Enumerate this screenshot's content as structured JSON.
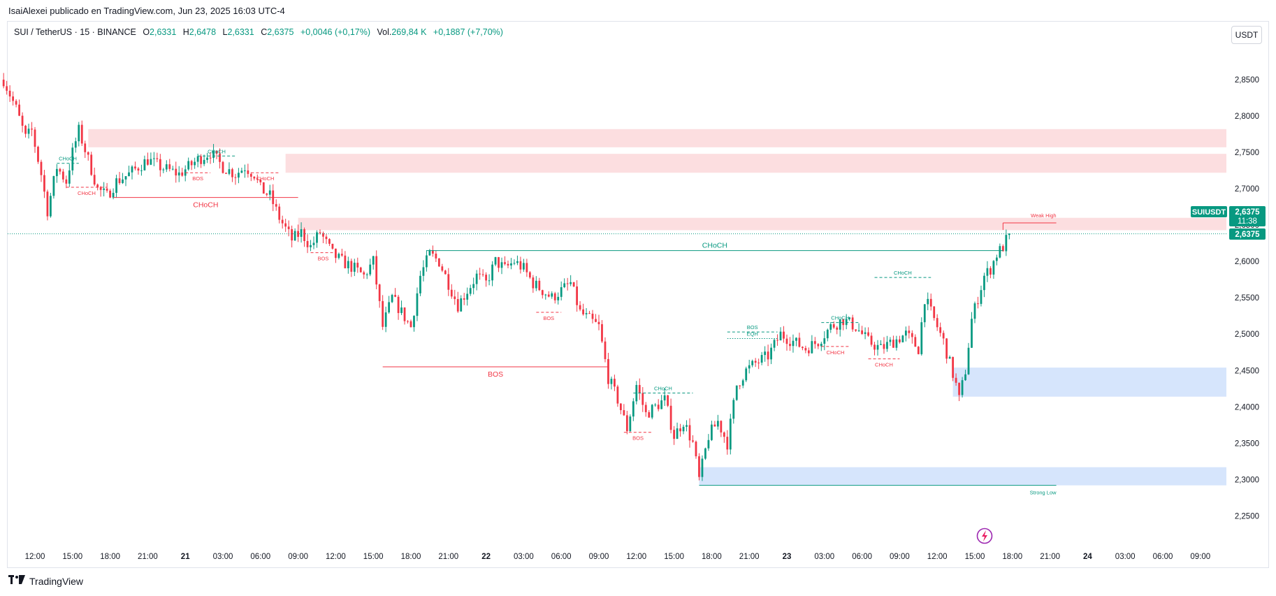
{
  "header": {
    "publisher_line": "IsaiAlexei publicado en TradingView.com, Jun 23, 2025 16:03 UTC-4"
  },
  "legend": {
    "symbol": "SUI / TetherUS · 15 · BINANCE",
    "o_label": "O",
    "o_value": "2,6331",
    "h_label": "H",
    "h_value": "2,6478",
    "l_label": "L",
    "l_value": "2,6331",
    "c_label": "C",
    "c_value": "2,6375",
    "change": "+0,0046 (+0,17%)",
    "vol_label": "Vol.",
    "vol_value": "269,84 K",
    "vol_change": "+0,1887 (+7,70%)"
  },
  "currency_button": "USDT",
  "price_tags": {
    "symbol_tag": "SUIUSDT",
    "last_price": "2,6375",
    "countdown": "11:38",
    "line_price": "2,6375"
  },
  "footer": {
    "brand": "TradingView"
  },
  "colors": {
    "up": "#089981",
    "down": "#f23645",
    "supply_zone": "#fbd3d6",
    "demand_zone": "#cfe0fb",
    "price_line": "#089981"
  },
  "chart_data": {
    "type": "candlestick",
    "title": "",
    "symbol": "SUI / TetherUS",
    "interval": "15",
    "exchange": "BINANCE",
    "ylim": [
      2.21,
      2.9
    ],
    "y_ticks": [
      "2,8500",
      "2,8000",
      "2,7500",
      "2,7000",
      "2,6500",
      "2,6000",
      "2,5500",
      "2,5000",
      "2,4500",
      "2,4000",
      "2,3500",
      "2,3000",
      "2,2500"
    ],
    "y_tick_values": [
      2.85,
      2.8,
      2.75,
      2.7,
      2.65,
      2.6,
      2.55,
      2.5,
      2.45,
      2.4,
      2.35,
      2.3,
      2.25
    ],
    "x_ticks": [
      "12:00",
      "15:00",
      "18:00",
      "21:00",
      "21",
      "03:00",
      "06:00",
      "09:00",
      "12:00",
      "15:00",
      "18:00",
      "21:00",
      "22",
      "03:00",
      "06:00",
      "09:00",
      "12:00",
      "15:00",
      "18:00",
      "21:00",
      "23",
      "03:00",
      "06:00",
      "09:00",
      "12:00",
      "15:00",
      "18:00",
      "21:00",
      "24",
      "03:00",
      "06:00",
      "09:00"
    ],
    "x_tick_bold": [
      "21",
      "22",
      "23",
      "24"
    ],
    "bars_per_hour": 4,
    "first_bar_hours_before_first_tick": 2.5,
    "close_path": [
      [
        0,
        2.85
      ],
      [
        4,
        2.81
      ],
      [
        7,
        2.77
      ],
      [
        9,
        2.78
      ],
      [
        12,
        2.72
      ],
      [
        14,
        2.67
      ],
      [
        17,
        2.73
      ],
      [
        20,
        2.71
      ],
      [
        22,
        2.75
      ],
      [
        24,
        2.78
      ],
      [
        27,
        2.74
      ],
      [
        30,
        2.7
      ],
      [
        33,
        2.69
      ],
      [
        36,
        2.71
      ],
      [
        40,
        2.72
      ],
      [
        46,
        2.74
      ],
      [
        50,
        2.73
      ],
      [
        56,
        2.72
      ],
      [
        62,
        2.74
      ],
      [
        66,
        2.75
      ],
      [
        70,
        2.73
      ],
      [
        74,
        2.72
      ],
      [
        77,
        2.73
      ],
      [
        80,
        2.72
      ],
      [
        82,
        2.7
      ],
      [
        85,
        2.69
      ],
      [
        88,
        2.66
      ],
      [
        92,
        2.63
      ],
      [
        95,
        2.64
      ],
      [
        98,
        2.62
      ],
      [
        101,
        2.64
      ],
      [
        105,
        2.61
      ],
      [
        108,
        2.6
      ],
      [
        112,
        2.59
      ],
      [
        115,
        2.58
      ],
      [
        118,
        2.6
      ],
      [
        121,
        2.51
      ],
      [
        124,
        2.55
      ],
      [
        127,
        2.53
      ],
      [
        130,
        2.51
      ],
      [
        133,
        2.58
      ],
      [
        136,
        2.61
      ],
      [
        139,
        2.6
      ],
      [
        142,
        2.57
      ],
      [
        145,
        2.54
      ],
      [
        148,
        2.56
      ],
      [
        151,
        2.58
      ],
      [
        154,
        2.57
      ],
      [
        157,
        2.6
      ],
      [
        160,
        2.59
      ],
      [
        163,
        2.6
      ],
      [
        166,
        2.59
      ],
      [
        169,
        2.57
      ],
      [
        172,
        2.56
      ],
      [
        175,
        2.55
      ],
      [
        178,
        2.56
      ],
      [
        181,
        2.57
      ],
      [
        184,
        2.53
      ],
      [
        187,
        2.52
      ],
      [
        190,
        2.51
      ],
      [
        193,
        2.44
      ],
      [
        196,
        2.41
      ],
      [
        199,
        2.37
      ],
      [
        202,
        2.43
      ],
      [
        205,
        2.39
      ],
      [
        208,
        2.4
      ],
      [
        211,
        2.41
      ],
      [
        214,
        2.36
      ],
      [
        217,
        2.38
      ],
      [
        220,
        2.35
      ],
      [
        222,
        2.3
      ],
      [
        225,
        2.36
      ],
      [
        228,
        2.38
      ],
      [
        231,
        2.35
      ],
      [
        234,
        2.43
      ],
      [
        237,
        2.45
      ],
      [
        240,
        2.46
      ],
      [
        244,
        2.47
      ],
      [
        248,
        2.5
      ],
      [
        252,
        2.49
      ],
      [
        256,
        2.48
      ],
      [
        260,
        2.49
      ],
      [
        264,
        2.51
      ],
      [
        268,
        2.52
      ],
      [
        272,
        2.51
      ],
      [
        276,
        2.49
      ],
      [
        280,
        2.48
      ],
      [
        284,
        2.49
      ],
      [
        288,
        2.5
      ],
      [
        292,
        2.48
      ],
      [
        294,
        2.55
      ],
      [
        296,
        2.53
      ],
      [
        298,
        2.51
      ],
      [
        300,
        2.49
      ],
      [
        302,
        2.46
      ],
      [
        304,
        2.43
      ],
      [
        305,
        2.41
      ],
      [
        307,
        2.45
      ],
      [
        309,
        2.52
      ],
      [
        311,
        2.55
      ],
      [
        313,
        2.58
      ],
      [
        315,
        2.59
      ],
      [
        317,
        2.61
      ],
      [
        319,
        2.62
      ],
      [
        321,
        2.638
      ]
    ],
    "supply_zones": [
      {
        "from_bar": 27,
        "to_bar": "end",
        "top": 2.782,
        "bottom": 2.757
      },
      {
        "from_bar": 90,
        "to_bar": "end",
        "top": 2.748,
        "bottom": 2.722
      },
      {
        "from_bar": 94,
        "to_bar": "end",
        "top": 2.66,
        "bottom": 2.643
      }
    ],
    "demand_zones": [
      {
        "from_bar": 303,
        "to_bar": "end",
        "top": 2.454,
        "bottom": 2.414
      },
      {
        "from_bar": 222,
        "to_bar": "end",
        "top": 2.317,
        "bottom": 2.292
      }
    ],
    "structure_lines": [
      {
        "label": "CHoCH",
        "type": "solid",
        "side": "down",
        "from_bar": 35,
        "to_bar": 94,
        "price": 2.688,
        "label_size": "large"
      },
      {
        "label": "BOS",
        "type": "solid",
        "side": "down",
        "from_bar": 121,
        "to_bar": 193,
        "price": 2.455,
        "label_size": "large"
      },
      {
        "label": "CHoCH",
        "type": "solid",
        "side": "up",
        "from_bar": 135,
        "to_bar": 319,
        "price": 2.615,
        "label_size": "large"
      },
      {
        "label": "CHoCH",
        "type": "dashed",
        "side": "up",
        "from_bar": 17,
        "to_bar": 24,
        "price": 2.735,
        "label_size": "small"
      },
      {
        "label": "CHoCH",
        "type": "dashed",
        "side": "down",
        "from_bar": 20,
        "to_bar": 33,
        "price": 2.702,
        "label_size": "small"
      },
      {
        "label": "CHoCH",
        "type": "dashed",
        "side": "up",
        "from_bar": 62,
        "to_bar": 74,
        "price": 2.745,
        "label_size": "small"
      },
      {
        "label": "BOS",
        "type": "dashed",
        "side": "down",
        "from_bar": 58,
        "to_bar": 66,
        "price": 2.722,
        "label_size": "small"
      },
      {
        "label": "CHoCH",
        "type": "dashed",
        "side": "down",
        "from_bar": 79,
        "to_bar": 88,
        "price": 2.722,
        "label_size": "small"
      },
      {
        "label": "BOS",
        "type": "dashed",
        "side": "down",
        "from_bar": 98,
        "to_bar": 106,
        "price": 2.612,
        "label_size": "small"
      },
      {
        "label": "BOS",
        "type": "dashed",
        "side": "down",
        "from_bar": 170,
        "to_bar": 178,
        "price": 2.53,
        "label_size": "small"
      },
      {
        "label": "BOS",
        "type": "dashed",
        "side": "down",
        "from_bar": 198,
        "to_bar": 207,
        "price": 2.365,
        "label_size": "small"
      },
      {
        "label": "CHoCH",
        "type": "dashed",
        "side": "up",
        "from_bar": 201,
        "to_bar": 220,
        "price": 2.419,
        "label_size": "small"
      },
      {
        "label": "BOS",
        "type": "dashed",
        "side": "up",
        "from_bar": 231,
        "to_bar": 247,
        "price": 2.503,
        "label_size": "small"
      },
      {
        "label": "EQH",
        "type": "dotted",
        "side": "up",
        "from_bar": 231,
        "to_bar": 247,
        "price": 2.494,
        "label_size": "small"
      },
      {
        "label": "CHoCH",
        "type": "dashed",
        "side": "up",
        "from_bar": 261,
        "to_bar": 273,
        "price": 2.516,
        "label_size": "small"
      },
      {
        "label": "CHoCH",
        "type": "dashed",
        "side": "down",
        "from_bar": 261,
        "to_bar": 270,
        "price": 2.483,
        "label_size": "small"
      },
      {
        "label": "CHoCH",
        "type": "dashed",
        "side": "down",
        "from_bar": 276,
        "to_bar": 286,
        "price": 2.466,
        "label_size": "small"
      },
      {
        "label": "CHoCH",
        "type": "dashed",
        "side": "up",
        "from_bar": 278,
        "to_bar": 296,
        "price": 2.578,
        "label_size": "small"
      }
    ],
    "swing_labels": [
      {
        "label": "Weak High",
        "bar": 319,
        "to_bar": 336,
        "price": 2.653,
        "color": "down"
      },
      {
        "label": "Strong Low",
        "bar": 222,
        "to_bar": 336,
        "price": 2.292,
        "color": "up"
      }
    ]
  }
}
